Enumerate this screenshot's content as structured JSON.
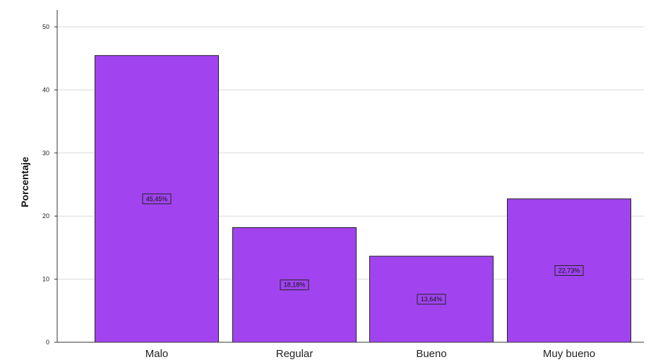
{
  "chart_data": {
    "type": "bar",
    "title": "",
    "xlabel": "",
    "ylabel": "Porcentaje",
    "categories": [
      "Malo",
      "Regular",
      "Bueno",
      "Muy bueno"
    ],
    "values": [
      45.45,
      18.18,
      13.64,
      22.73
    ],
    "data_labels": [
      "45,45%",
      "18,18%",
      "13,64%",
      "22,73%"
    ],
    "yticks": [
      0,
      10,
      20,
      30,
      40,
      50
    ],
    "ylim": [
      0,
      50
    ],
    "grid": true,
    "legend": "none",
    "colors": {
      "bar_fill": "#a144ef",
      "bar_stroke": "#222222",
      "grid": "#d9d9d9",
      "axis": "#333333"
    }
  }
}
